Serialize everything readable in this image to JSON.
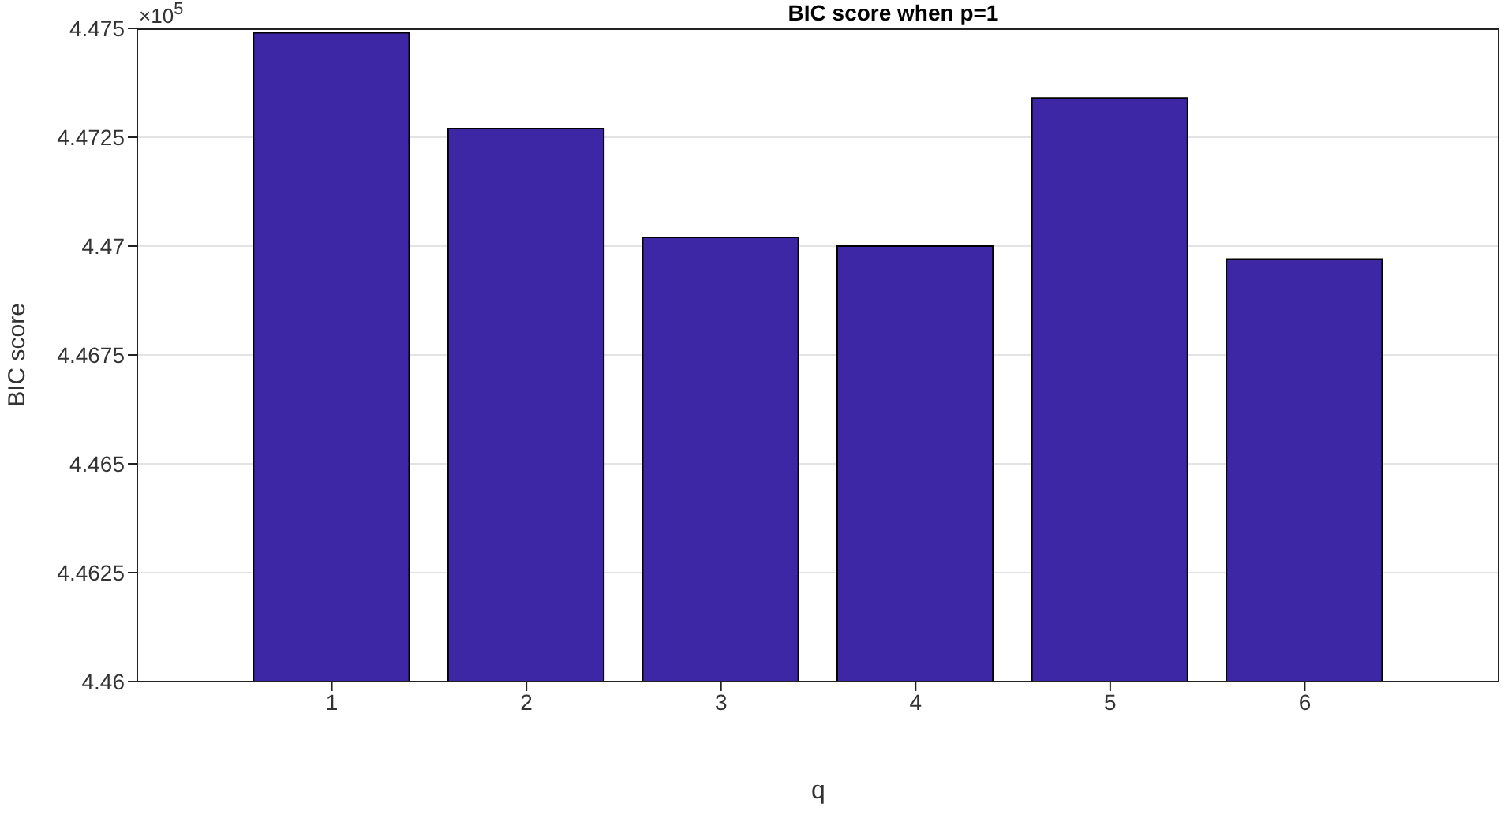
{
  "chart_data": {
    "type": "bar",
    "title": "BIC score when p=1",
    "xlabel": "q",
    "ylabel": "BIC score",
    "annotations": [
      "×10$^{5}$"
    ],
    "categories": [
      "1",
      "2",
      "3",
      "4",
      "5",
      "6"
    ],
    "values": [
      4.4749,
      4.4727,
      4.4702,
      4.47,
      4.4734,
      4.4697
    ],
    "color": "#3d27a5",
    "ylim": [
      4.46,
      4.475
    ],
    "yticks": [
      4.46,
      4.4625,
      4.465,
      4.4675,
      4.47,
      4.4725,
      4.475
    ],
    "grid": "y"
  }
}
